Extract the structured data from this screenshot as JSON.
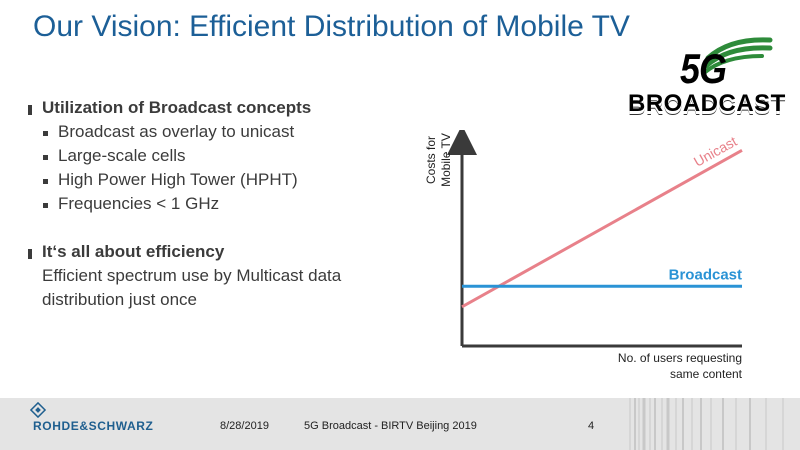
{
  "slide": {
    "title": "Our Vision: Efficient Distribution of Mobile TV"
  },
  "logo": {
    "fiveg": "5G",
    "broadcast": "BROADCAST"
  },
  "content": {
    "section1": {
      "heading": "Utilization of Broadcast concepts",
      "bullets": [
        "Broadcast as overlay to unicast",
        "Large-scale cells",
        "High Power High Tower (HPHT)",
        "Frequencies < 1 GHz"
      ]
    },
    "section2": {
      "heading": "It‘s all about efficiency",
      "text_line1": "Efficient spectrum use by Multicast data",
      "text_line2": "distribution just once"
    }
  },
  "chart_data": {
    "type": "line",
    "title": "",
    "ylabel": "Costs for Mobile TV",
    "ylabel_lines": [
      "Costs for",
      "Mobile TV"
    ],
    "xlabel": "No. of users requesting same content",
    "xlabel_lines": [
      "No. of users requesting",
      "same content"
    ],
    "xlim": [
      0,
      100
    ],
    "ylim": [
      0,
      100
    ],
    "series": [
      {
        "name": "Unicast",
        "color": "#e8818a",
        "x": [
          0,
          100
        ],
        "y": [
          19,
          95
        ]
      },
      {
        "name": "Broadcast",
        "color": "#2a93d5",
        "x": [
          0,
          100
        ],
        "y": [
          29,
          29
        ]
      }
    ]
  },
  "footer": {
    "brand": "ROHDE&SCHWARZ",
    "date": "8/28/2019",
    "event": "5G Broadcast - BIRTV Beijing 2019",
    "page": "4"
  }
}
